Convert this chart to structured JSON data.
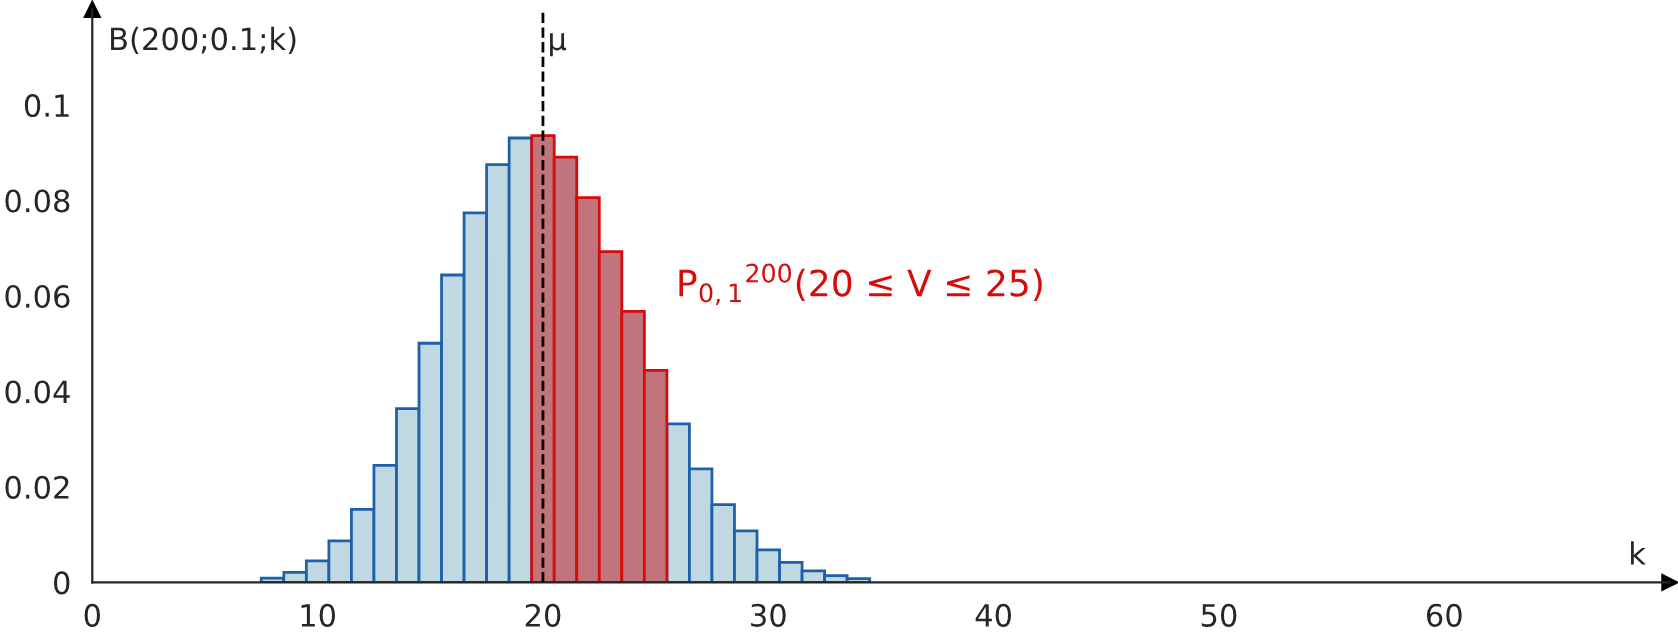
{
  "chart_data": {
    "type": "bar",
    "xlabel": "k",
    "ylabel": "B(200;0.1;k)",
    "series": [
      {
        "color": "#bfd8e2",
        "x": [
          8,
          9,
          10,
          11,
          12,
          13,
          14,
          15,
          16,
          17,
          18,
          19,
          26,
          27,
          28,
          29,
          30,
          31,
          32,
          33,
          34
        ],
        "values": [
          0.0009,
          0.0021,
          0.0045,
          0.0087,
          0.0153,
          0.0245,
          0.0364,
          0.0501,
          0.0644,
          0.0774,
          0.0875,
          0.0931,
          0.0332,
          0.0238,
          0.0163,
          0.0108,
          0.0068,
          0.0042,
          0.0024,
          0.0014,
          0.0008
        ]
      },
      {
        "color": "#c1747c",
        "x": [
          20,
          21,
          22,
          23,
          24,
          25
        ],
        "values": [
          0.0936,
          0.0891,
          0.0806,
          0.0693,
          0.0568,
          0.0444
        ]
      }
    ],
    "xlim": [
      0,
      70
    ],
    "xticks": [
      0,
      10,
      20,
      30,
      40,
      50,
      60
    ],
    "ylim": [
      0,
      0.12
    ],
    "yticks": [
      0,
      0.02,
      0.04,
      0.06,
      0.08,
      0.1
    ],
    "ref_lines": [
      {
        "axis": "x",
        "value": 20,
        "label": "μ",
        "line_style": "dashed",
        "color": "#000000"
      }
    ],
    "annotations": [
      "P$_{0,1}$$^{200}$(20 ≤ V ≤ 25)"
    ],
    "grid": false,
    "legend": false
  }
}
